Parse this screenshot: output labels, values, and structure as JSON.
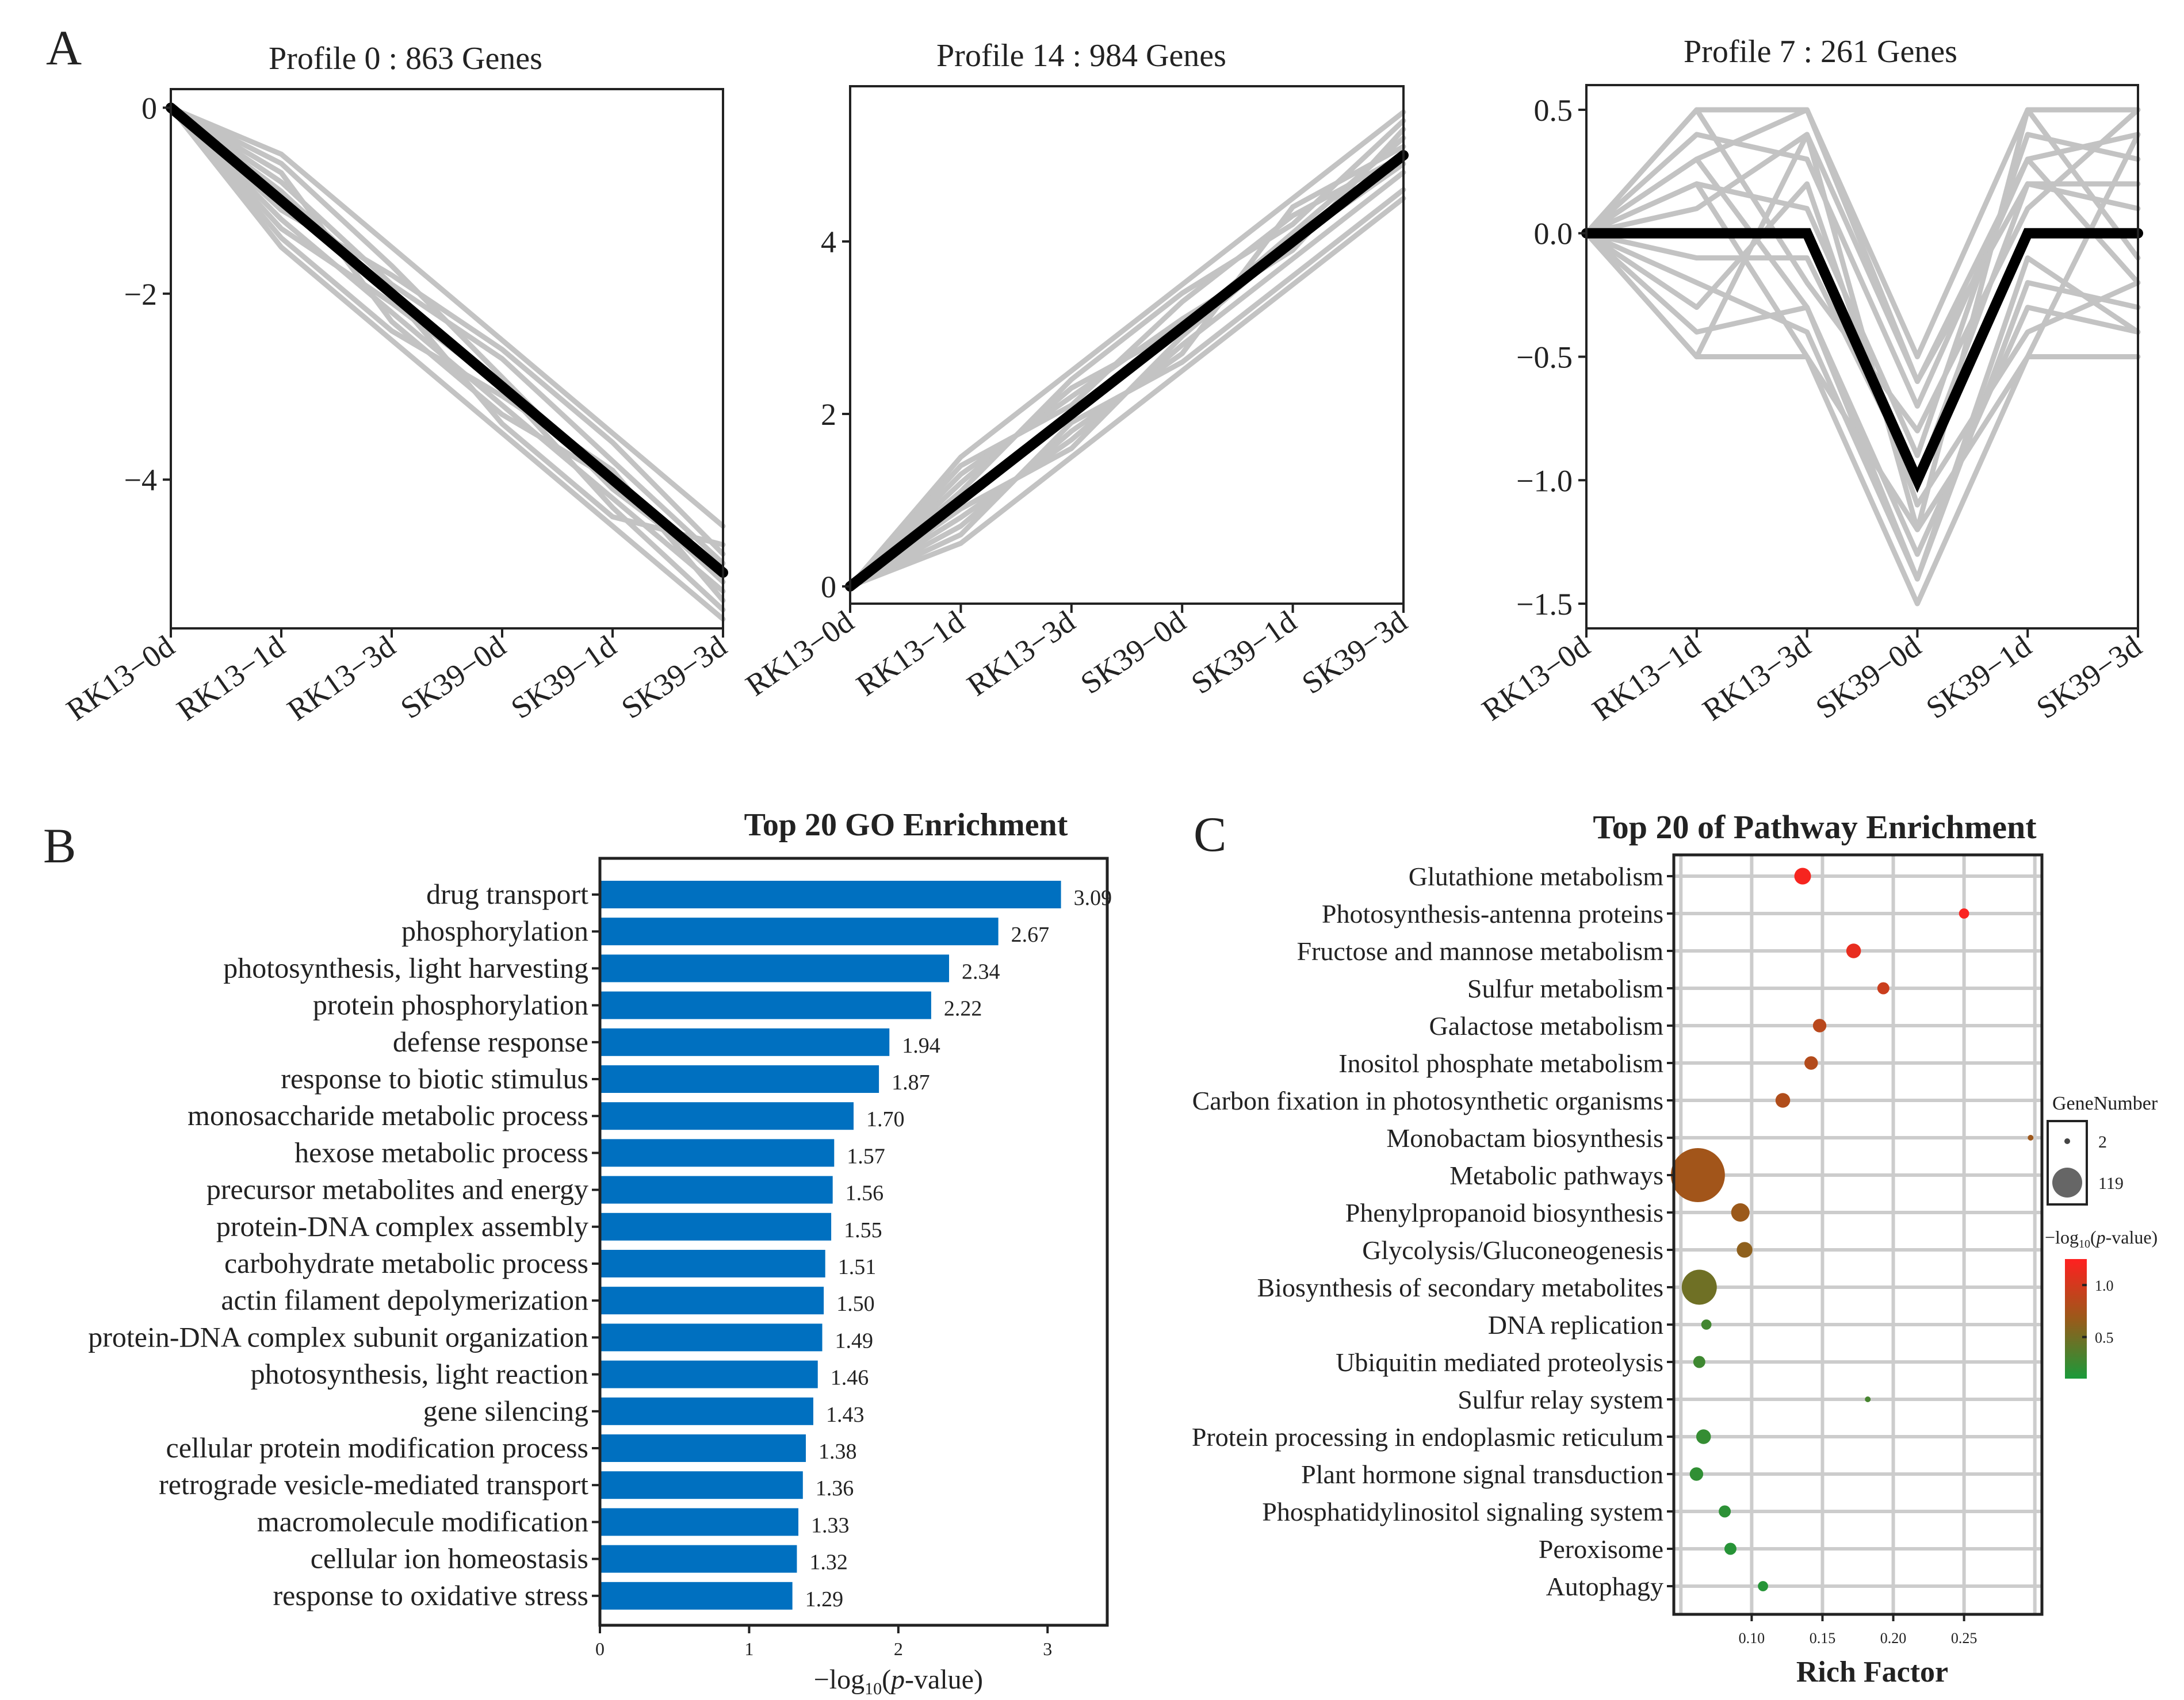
{
  "panel_labels": [
    "A",
    "B",
    "C"
  ],
  "colors": {
    "bar": "#0070c0",
    "profile_bg": "#c3c3c3",
    "profile_fg": "#000000",
    "grid": "#cccccc",
    "low": "#1a9a3a",
    "mid": "#9a5a1a",
    "high": "#ff2020"
  },
  "chart_data": [
    {
      "type": "line",
      "id": "profile0",
      "title": "Profile 0 : 863 Genes",
      "categories": [
        "RK13−0d",
        "RK13−1d",
        "RK13−3d",
        "SK39−0d",
        "SK39−1d",
        "SK39−3d"
      ],
      "ylim": [
        -5.6,
        0.2
      ],
      "yticks": [
        0,
        -2,
        -4
      ],
      "ytick_labels": [
        "0",
        "−2",
        "−4"
      ],
      "model": [
        0,
        -1,
        -2,
        -3,
        -4,
        -5
      ],
      "series": [
        {
          "name": "g1",
          "values": [
            0,
            -0.5,
            -1.5,
            -2.5,
            -3.5,
            -4.5
          ]
        },
        {
          "name": "g2",
          "values": [
            0,
            -1.5,
            -2.5,
            -3.5,
            -4.5,
            -5.5
          ]
        },
        {
          "name": "g3",
          "values": [
            0,
            -0.8,
            -1.9,
            -2.7,
            -3.8,
            -4.9
          ]
        },
        {
          "name": "g4",
          "values": [
            0,
            -1.2,
            -2.2,
            -3.2,
            -4.2,
            -5.2
          ]
        },
        {
          "name": "g5",
          "values": [
            0,
            -0.6,
            -1.7,
            -2.9,
            -4.1,
            -5.0
          ]
        },
        {
          "name": "g6",
          "values": [
            0,
            -1.4,
            -2.4,
            -3.1,
            -3.9,
            -5.3
          ]
        },
        {
          "name": "g7",
          "values": [
            0,
            -0.9,
            -2.0,
            -3.4,
            -4.4,
            -4.7
          ]
        },
        {
          "name": "g8",
          "values": [
            0,
            -1.1,
            -1.8,
            -2.6,
            -3.6,
            -4.8
          ]
        },
        {
          "name": "g9",
          "values": [
            0,
            -0.7,
            -2.3,
            -3.3,
            -4.0,
            -5.1
          ]
        },
        {
          "name": "g10",
          "values": [
            0,
            -1.3,
            -2.1,
            -3.0,
            -4.3,
            -5.4
          ]
        }
      ]
    },
    {
      "type": "line",
      "id": "profile14",
      "title": "Profile 14 : 984 Genes",
      "categories": [
        "RK13−0d",
        "RK13−1d",
        "RK13−3d",
        "SK39−0d",
        "SK39−1d",
        "SK39−3d"
      ],
      "ylim": [
        -0.2,
        5.8
      ],
      "yticks": [
        0,
        2,
        4
      ],
      "ytick_labels": [
        "0",
        "2",
        "4"
      ],
      "model": [
        0,
        1,
        2,
        3,
        4,
        5
      ],
      "series": [
        {
          "name": "g1",
          "values": [
            0,
            1.5,
            2.5,
            3.5,
            4.5,
            5.5
          ]
        },
        {
          "name": "g2",
          "values": [
            0,
            0.5,
            1.5,
            2.5,
            3.5,
            4.5
          ]
        },
        {
          "name": "g3",
          "values": [
            0,
            1.2,
            2.3,
            3.0,
            4.1,
            5.2
          ]
        },
        {
          "name": "g4",
          "values": [
            0,
            0.8,
            1.7,
            2.8,
            3.8,
            4.8
          ]
        },
        {
          "name": "g5",
          "values": [
            0,
            1.4,
            2.1,
            3.3,
            4.3,
            5.0
          ]
        },
        {
          "name": "g6",
          "values": [
            0,
            0.6,
            1.9,
            2.6,
            3.6,
            4.6
          ]
        },
        {
          "name": "g7",
          "values": [
            0,
            1.1,
            2.4,
            3.4,
            4.2,
            5.4
          ]
        },
        {
          "name": "g8",
          "values": [
            0,
            0.9,
            1.6,
            2.9,
            4.0,
            4.9
          ]
        },
        {
          "name": "g9",
          "values": [
            0,
            1.3,
            2.2,
            3.1,
            3.9,
            5.3
          ]
        },
        {
          "name": "g10",
          "values": [
            0,
            0.7,
            1.8,
            2.7,
            4.4,
            5.1
          ]
        }
      ]
    },
    {
      "type": "line",
      "id": "profile7",
      "title": "Profile 7 : 261 Genes",
      "categories": [
        "RK13−0d",
        "RK13−1d",
        "RK13−3d",
        "SK39−0d",
        "SK39−1d",
        "SK39−3d"
      ],
      "ylim": [
        -1.6,
        0.6
      ],
      "yticks": [
        0.5,
        0,
        -0.5,
        -1.0,
        -1.5
      ],
      "ytick_labels": [
        "0.5",
        "0.0",
        "−0.5",
        "−1.0",
        "−1.5"
      ],
      "model": [
        0,
        0,
        0,
        -1,
        0,
        0
      ],
      "series": [
        {
          "name": "g1",
          "values": [
            0,
            0.5,
            0.5,
            -0.5,
            0.5,
            0.5
          ]
        },
        {
          "name": "g2",
          "values": [
            0,
            -0.5,
            -0.5,
            -1.5,
            -0.5,
            -0.5
          ]
        },
        {
          "name": "g3",
          "values": [
            0,
            0.4,
            0.3,
            -0.7,
            0.3,
            0.4
          ]
        },
        {
          "name": "g4",
          "values": [
            0,
            -0.4,
            -0.3,
            -1.3,
            -0.3,
            -0.4
          ]
        },
        {
          "name": "g5",
          "values": [
            0,
            0.3,
            0.5,
            -0.6,
            0.2,
            0.1
          ]
        },
        {
          "name": "g6",
          "values": [
            0,
            -0.2,
            -0.4,
            -1.4,
            -0.2,
            -0.3
          ]
        },
        {
          "name": "g7",
          "values": [
            0,
            0.2,
            0.1,
            -0.9,
            0.4,
            0.3
          ]
        },
        {
          "name": "g8",
          "values": [
            0,
            -0.3,
            0.2,
            -1.1,
            -0.4,
            -0.2
          ]
        },
        {
          "name": "g9",
          "values": [
            0,
            0.5,
            -0.2,
            -0.8,
            0.1,
            0.5
          ]
        },
        {
          "name": "g10",
          "values": [
            0,
            0.1,
            0.4,
            -1.2,
            0.5,
            -0.1
          ]
        },
        {
          "name": "g11",
          "values": [
            0,
            -0.1,
            -0.1,
            -1.0,
            0.2,
            0.2
          ]
        },
        {
          "name": "g12",
          "values": [
            0,
            0.3,
            -0.3,
            -1.4,
            -0.1,
            -0.4
          ]
        },
        {
          "name": "g13",
          "values": [
            0,
            -0.5,
            0.4,
            -0.6,
            0.3,
            -0.2
          ]
        },
        {
          "name": "g14",
          "values": [
            0,
            0.2,
            -0.5,
            -1.2,
            -0.5,
            0.4
          ]
        }
      ]
    },
    {
      "type": "bar",
      "id": "go",
      "orientation": "horizontal",
      "title": "Top 20 GO Enrichment",
      "xlabel_prefix": "−log",
      "xlabel_sub": "10",
      "xlabel_open": "(",
      "xlabel_p": "p",
      "xlabel_suffix": "-value)",
      "xlim": [
        0,
        3.4
      ],
      "xticks": [
        0,
        1,
        2,
        3
      ],
      "xtick_labels": [
        "0",
        "1",
        "2",
        "3"
      ],
      "categories": [
        "drug transport",
        "phosphorylation",
        "photosynthesis, light harvesting",
        "protein phosphorylation",
        "defense response",
        "response to biotic stimulus",
        "monosaccharide metabolic process",
        "hexose metabolic process",
        "precursor metabolites and energy",
        "protein-DNA complex assembly",
        "carbohydrate metabolic process",
        "actin filament depolymerization",
        "protein-DNA complex subunit organization",
        "photosynthesis, light reaction",
        "gene silencing",
        "cellular protein modification process",
        "retrograde vesicle-mediated transport",
        "macromolecule modification",
        "cellular ion homeostasis",
        "response to oxidative stress"
      ],
      "values": [
        3.09,
        2.67,
        2.34,
        2.22,
        1.94,
        1.87,
        1.7,
        1.57,
        1.56,
        1.55,
        1.51,
        1.5,
        1.49,
        1.46,
        1.43,
        1.38,
        1.36,
        1.33,
        1.32,
        1.29
      ],
      "value_labels": [
        "3.09",
        "2.67",
        "2.34",
        "2.22",
        "1.94",
        "1.87",
        "1.70",
        "1.57",
        "1.56",
        "1.55",
        "1.51",
        "1.50",
        "1.49",
        "1.46",
        "1.43",
        "1.38",
        "1.36",
        "1.33",
        "1.32",
        "1.29"
      ]
    },
    {
      "type": "scatter",
      "id": "kegg",
      "title": "Top 20 of Pathway Enrichment",
      "xlabel": "Rich Factor",
      "xlim": [
        0.045,
        0.305
      ],
      "xticks": [
        0.1,
        0.15,
        0.2,
        0.25
      ],
      "xtick_labels": [
        "0.10",
        "0.15",
        "0.20",
        "0.25"
      ],
      "xgrid": [
        0.05,
        0.1,
        0.15,
        0.2,
        0.25,
        0.3
      ],
      "categories": [
        "Glutathione metabolism",
        "Photosynthesis-antenna proteins",
        "Fructose and mannose metabolism",
        "Sulfur metabolism",
        "Galactose metabolism",
        "Inositol phosphate metabolism",
        "Carbon fixation in photosynthetic organisms",
        "Monobactam biosynthesis",
        "Metabolic pathways",
        "Phenylpropanoid biosynthesis",
        "Glycolysis/Gluconeogenesis",
        "Biosynthesis of secondary metabolites",
        "DNA replication",
        "Ubiquitin mediated proteolysis",
        "Sulfur relay system",
        "Protein processing in endoplasmic reticulum",
        "Plant hormone signal transduction",
        "Phosphatidylinositol signaling system",
        "Peroxisome",
        "Autophagy"
      ],
      "rich_factor": [
        0.136,
        0.25,
        0.172,
        0.193,
        0.148,
        0.142,
        0.122,
        0.297,
        0.062,
        0.092,
        0.095,
        0.063,
        0.068,
        0.063,
        0.182,
        0.066,
        0.061,
        0.081,
        0.085,
        0.108
      ],
      "gene_number": [
        8,
        3,
        6,
        4,
        5,
        5,
        6,
        2,
        119,
        10,
        7,
        45,
        3,
        4,
        2,
        6,
        5,
        4,
        4,
        3
      ],
      "neg_log10_p": [
        1.2,
        1.22,
        1.12,
        0.95,
        0.85,
        0.82,
        0.8,
        0.7,
        0.72,
        0.68,
        0.62,
        0.48,
        0.28,
        0.26,
        0.3,
        0.22,
        0.2,
        0.18,
        0.16,
        0.15
      ],
      "legend_size_title": "GeneNumber",
      "legend_size_labels": [
        "2",
        "119"
      ],
      "legend_size_values": [
        2,
        119
      ],
      "legend_color_title_prefix": "−log",
      "legend_color_title_sub": "10",
      "legend_color_title_open": "(",
      "legend_color_title_p": "p",
      "legend_color_title_suffix": "-value)",
      "legend_color_ticks": [
        1.0,
        0.5
      ],
      "legend_color_tick_labels": [
        "1.0",
        "0.5"
      ],
      "color_range": [
        0.1,
        1.25
      ]
    }
  ]
}
